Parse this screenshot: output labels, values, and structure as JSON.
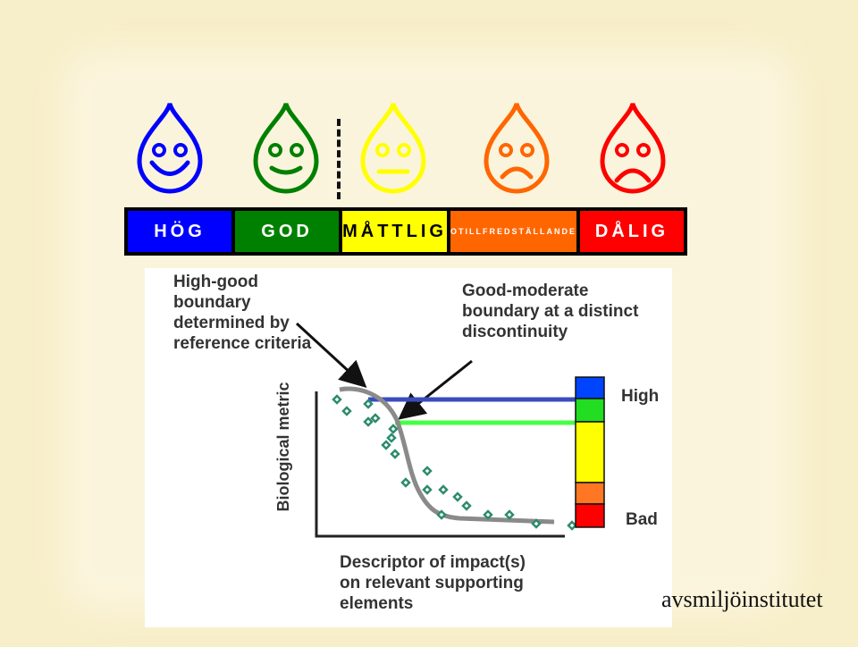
{
  "scale": {
    "segments": [
      {
        "label": "HÖG",
        "bg": "#0000ff",
        "color": "#ffffff",
        "size": "normal"
      },
      {
        "label": "GOD",
        "bg": "#008000",
        "color": "#ffffff",
        "size": "normal"
      },
      {
        "label": "MÅTTLIG",
        "bg": "#ffff00",
        "color": "#000000",
        "size": "normal"
      },
      {
        "label": "OTILLFREDSTÄLLANDE",
        "bg": "#ff6600",
        "color": "#ffffff",
        "size": "small"
      },
      {
        "label": "DÅLIG",
        "bg": "#ff0000",
        "color": "#ffffff",
        "size": "normal"
      }
    ]
  },
  "faces": [
    {
      "name": "blue-happy-drop",
      "color": "#0000ff",
      "mood": "happy"
    },
    {
      "name": "green-smile-drop",
      "color": "#008000",
      "mood": "smile"
    },
    {
      "name": "yellow-neutral-drop",
      "color": "#ffff00",
      "mood": "neutral"
    },
    {
      "name": "orange-sad-drop",
      "color": "#ff6600",
      "mood": "sad"
    },
    {
      "name": "red-sad-drop",
      "color": "#ff0000",
      "mood": "very-sad"
    }
  ],
  "figure": {
    "high_good_label": "High-good\nboundary\ndetermined by\nreference criteria",
    "good_moderate_label": "Good-moderate\nboundary at a distinct\ndiscontinuity",
    "y_axis_label": "Biological metric",
    "x_axis_label": "Descriptor of impact(s)\non relevant supporting\nelements",
    "high_label": "High",
    "bad_label": "Bad",
    "class_colors": [
      "#0044ff",
      "#22dd22",
      "#ffff00",
      "#ff7722",
      "#ff0000"
    ],
    "high_good_line_color": "#3b4cc0",
    "good_moderate_line_color": "#44ff44",
    "curve_color": "#8a8a8a",
    "point_color": "#2e8b6e"
  },
  "footer": {
    "logo_text": "avsmiljöinstitutet"
  }
}
